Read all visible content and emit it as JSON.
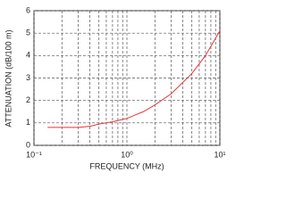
{
  "chart_data": {
    "type": "line",
    "xlabel": "FREQUENCY (MHz)",
    "ylabel": "ATTENUATION (dB/100 m)",
    "xscale": "log",
    "x": [
      0.14,
      0.2,
      0.3,
      0.4,
      0.5,
      0.7,
      1,
      1.5,
      2,
      3,
      5,
      7,
      10
    ],
    "series": [
      {
        "color": "#e8343a",
        "values": [
          0.8,
          0.8,
          0.8,
          0.85,
          0.95,
          1.05,
          1.2,
          1.5,
          1.8,
          2.3,
          3.2,
          4.0,
          5.1
        ]
      }
    ],
    "xlim": [
      0.1,
      10
    ],
    "xticks": [
      {
        "value": 0.1,
        "label": "10⁻¹"
      },
      {
        "value": 1,
        "label": "10⁰"
      },
      {
        "value": 10,
        "label": "10¹"
      }
    ],
    "ylim": [
      0,
      6
    ],
    "yticks": [
      0,
      1,
      2,
      3,
      4,
      5,
      6
    ],
    "grid": true,
    "minor_grid": true
  }
}
